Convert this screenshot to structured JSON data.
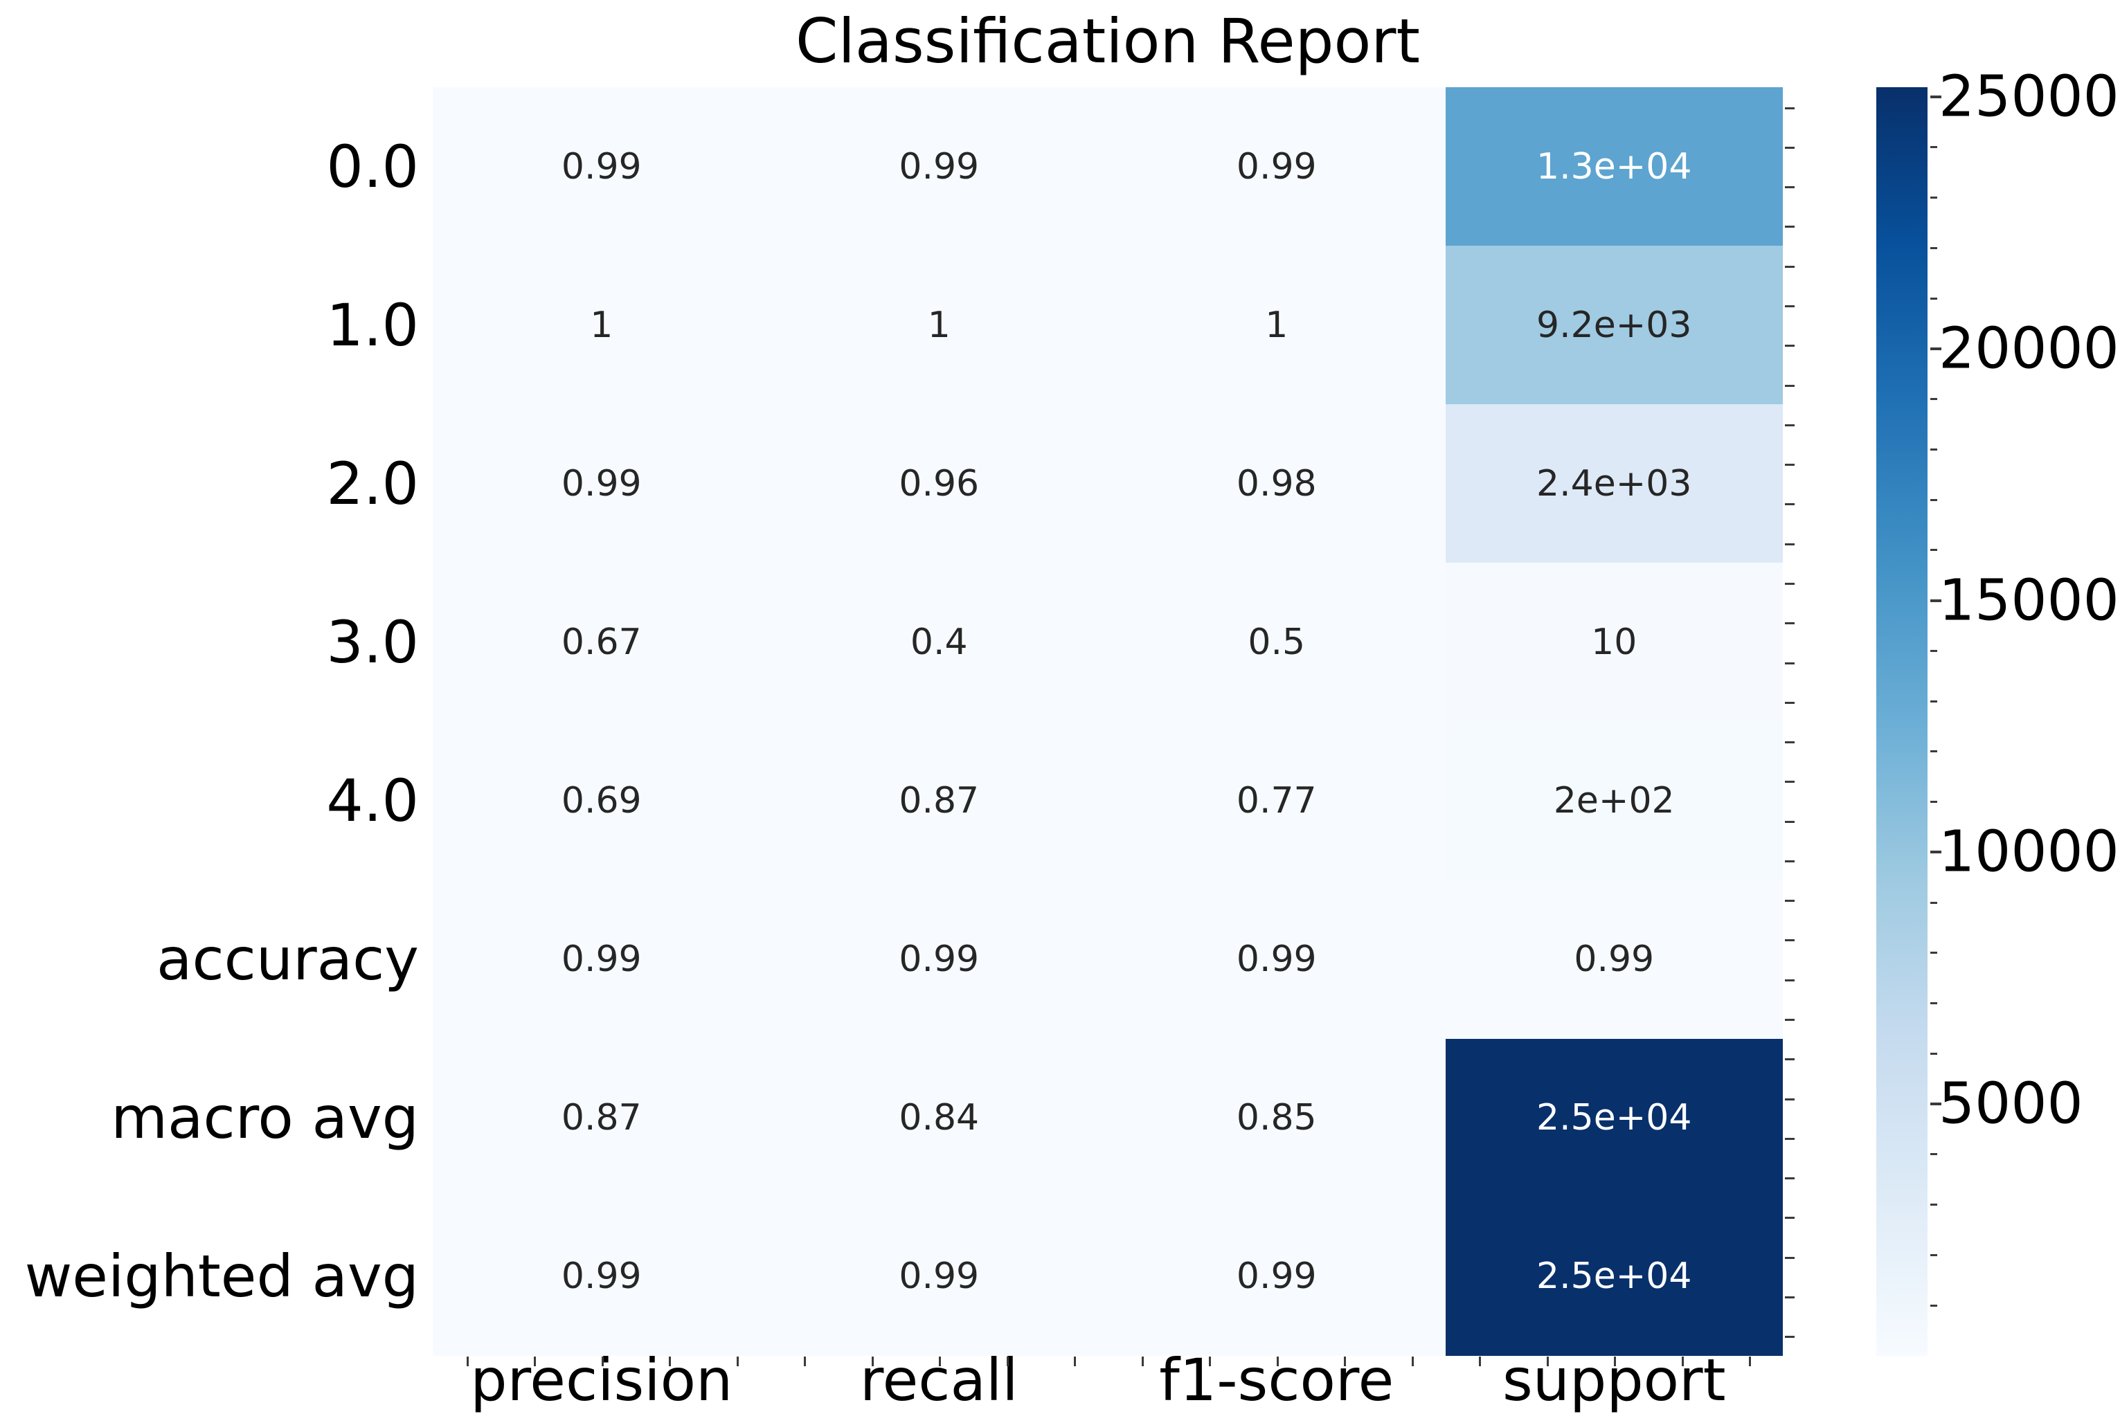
{
  "title": "Classification Report",
  "chart_data": {
    "type": "heatmap",
    "title": "Classification Report",
    "rows": [
      "0.0",
      "1.0",
      "2.0",
      "3.0",
      "4.0",
      "accuracy",
      "macro avg",
      "weighted avg"
    ],
    "columns": [
      "precision",
      "recall",
      "f1-score",
      "support"
    ],
    "values": [
      [
        0.99,
        0.99,
        0.99,
        13000
      ],
      [
        1,
        1,
        1,
        9200
      ],
      [
        0.99,
        0.96,
        0.98,
        2400
      ],
      [
        0.67,
        0.4,
        0.5,
        10
      ],
      [
        0.69,
        0.87,
        0.77,
        200
      ],
      [
        0.99,
        0.99,
        0.99,
        0.99
      ],
      [
        0.87,
        0.84,
        0.85,
        25000
      ],
      [
        0.99,
        0.99,
        0.99,
        25000
      ]
    ],
    "cell_labels": [
      [
        "0.99",
        "0.99",
        "0.99",
        "1.3e+04"
      ],
      [
        "1",
        "1",
        "1",
        "9.2e+03"
      ],
      [
        "0.99",
        "0.96",
        "0.98",
        "2.4e+03"
      ],
      [
        "0.67",
        "0.4",
        "0.5",
        "10"
      ],
      [
        "0.69",
        "0.87",
        "0.77",
        "2e+02"
      ],
      [
        "0.99",
        "0.99",
        "0.99",
        "0.99"
      ],
      [
        "0.87",
        "0.84",
        "0.85",
        "2.5e+04"
      ],
      [
        "0.99",
        "0.99",
        "0.99",
        "2.5e+04"
      ]
    ],
    "cell_colors": [
      [
        "#f7fbff",
        "#f7fbff",
        "#f7fbff",
        "#5da4d0"
      ],
      [
        "#f7fbff",
        "#f7fbff",
        "#f7fbff",
        "#a0cbe2"
      ],
      [
        "#f7fbff",
        "#f7fbff",
        "#f7fbff",
        "#dde9f6"
      ],
      [
        "#f7fbff",
        "#f7fbff",
        "#f7fbff",
        "#f6faff"
      ],
      [
        "#f7fbff",
        "#f7fbff",
        "#f7fbff",
        "#f5fafe"
      ],
      [
        "#f7fbff",
        "#f7fbff",
        "#f7fbff",
        "#f7fbff"
      ],
      [
        "#f7fbff",
        "#f7fbff",
        "#f7fbff",
        "#08306b"
      ],
      [
        "#f7fbff",
        "#f7fbff",
        "#f7fbff",
        "#08306b"
      ]
    ],
    "cell_label_colors": [
      [
        "#262626",
        "#262626",
        "#262626",
        "#ffffff"
      ],
      [
        "#262626",
        "#262626",
        "#262626",
        "#262626"
      ],
      [
        "#262626",
        "#262626",
        "#262626",
        "#262626"
      ],
      [
        "#262626",
        "#262626",
        "#262626",
        "#262626"
      ],
      [
        "#262626",
        "#262626",
        "#262626",
        "#262626"
      ],
      [
        "#262626",
        "#262626",
        "#262626",
        "#262626"
      ],
      [
        "#262626",
        "#262626",
        "#262626",
        "#ffffff"
      ],
      [
        "#262626",
        "#262626",
        "#262626",
        "#ffffff"
      ]
    ],
    "colormap": "Blues",
    "colorbar": {
      "vmin": 0,
      "vmax": 25192,
      "major_ticks": [
        5000,
        10000,
        15000,
        20000,
        25000
      ],
      "major_tick_labels": [
        "5000",
        "10000",
        "15000",
        "20000",
        "25000"
      ],
      "minor_tick_interval": 1000,
      "gradient_stops": [
        "#f7fbff",
        "#deebf7",
        "#c6dbef",
        "#9ecae1",
        "#6baed6",
        "#4292c6",
        "#2171b5",
        "#08519c",
        "#08306b"
      ]
    },
    "axes": {
      "x_minor_tick_count": 20,
      "y_minor_tick_count": 32,
      "grid": false,
      "legend": false
    },
    "annotation_colors": {
      "dark": "#262626",
      "light": "#ffffff"
    },
    "tick_color": "#3a3a3a",
    "figure_background": "#ffffff"
  }
}
